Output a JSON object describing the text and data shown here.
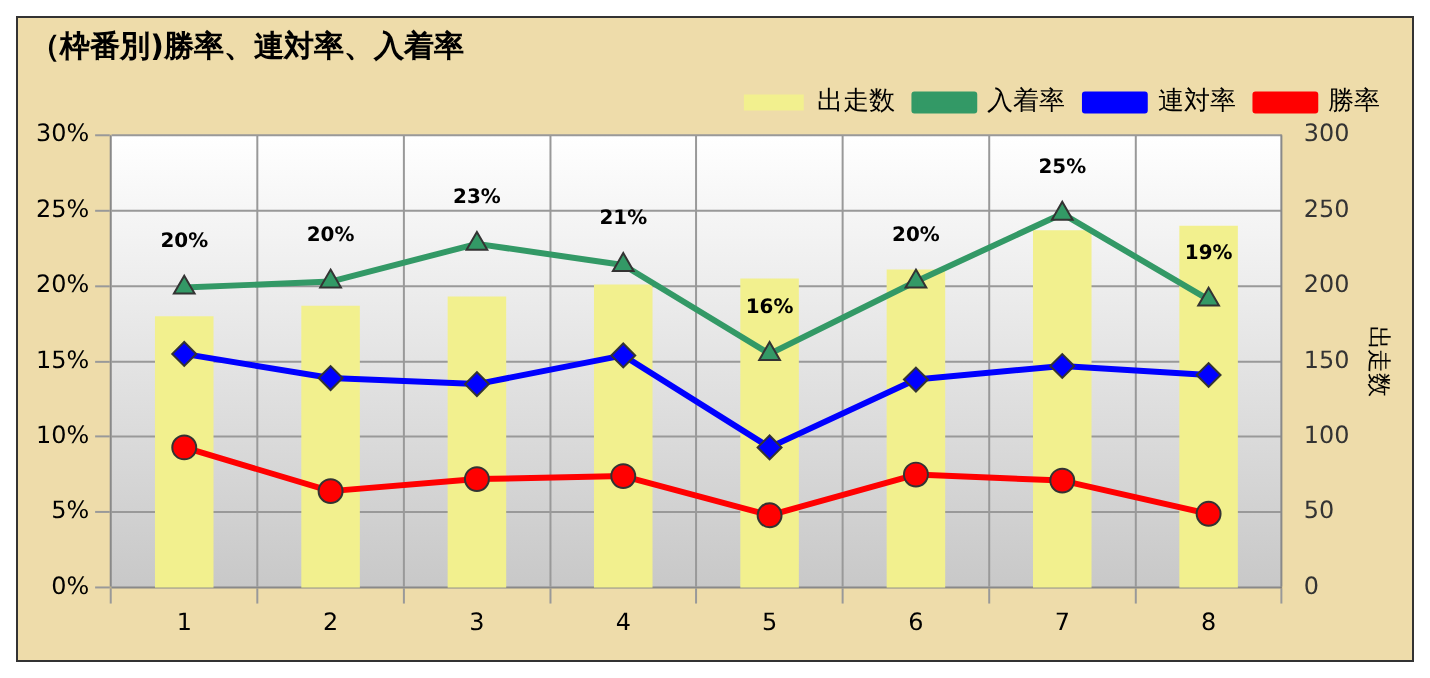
{
  "chart_data": {
    "type": "bar",
    "title": "（枠番別)勝率、連対率、入着率",
    "y2label": "出走数",
    "categories": [
      "1",
      "2",
      "3",
      "4",
      "5",
      "6",
      "7",
      "8"
    ],
    "series": [
      {
        "name": "出走数",
        "axis": "y2",
        "color": "#f2f08e",
        "values": [
          180,
          187,
          193,
          201,
          205,
          211,
          237,
          240
        ]
      },
      {
        "name": "入着率",
        "type": "line",
        "marker": "triangle",
        "color": "#339966",
        "values": [
          19.9,
          20.3,
          22.8,
          21.4,
          15.5,
          20.3,
          24.8,
          19.1
        ],
        "value_labels": [
          "20%",
          "20%",
          "23%",
          "21%",
          "16%",
          "20%",
          "25%",
          "19%"
        ]
      },
      {
        "name": "連対率",
        "type": "line",
        "marker": "diamond",
        "color": "#0000ff",
        "values": [
          15.5,
          13.9,
          13.5,
          15.4,
          9.3,
          13.8,
          14.7,
          14.1
        ]
      },
      {
        "name": "勝率",
        "type": "line",
        "marker": "circle",
        "color": "#ff0000",
        "values": [
          9.3,
          6.4,
          7.2,
          7.4,
          4.8,
          7.5,
          7.1,
          4.9
        ]
      }
    ],
    "ylim": [
      0,
      30
    ],
    "yticks": [
      {
        "value": 0,
        "label": "0%"
      },
      {
        "value": 5,
        "label": "5%"
      },
      {
        "value": 10,
        "label": "10%"
      },
      {
        "value": 15,
        "label": "15%"
      },
      {
        "value": 20,
        "label": "20%"
      },
      {
        "value": 25,
        "label": "25%"
      },
      {
        "value": 30,
        "label": "30%"
      }
    ],
    "y2lim": [
      0,
      300
    ],
    "y2ticks": [
      0,
      50,
      100,
      150,
      200,
      250,
      300
    ],
    "grid": true,
    "legend": "top right"
  }
}
